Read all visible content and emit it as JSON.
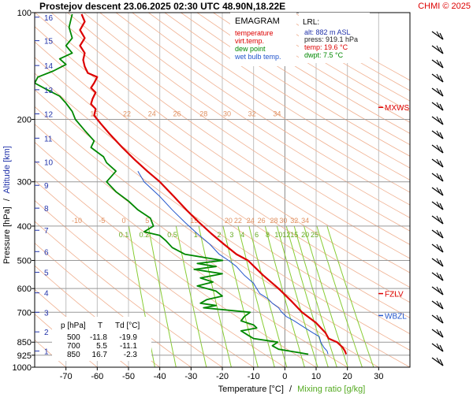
{
  "header": {
    "title": "Prostejov   descent   23.06.2025 02:30 UTC  48.90N,18.22E",
    "credit": "CHMI © 2025"
  },
  "colors": {
    "temperature": "#dd0000",
    "dew_point": "#008800",
    "wet_bulb": "#2255cc",
    "isotherm": "#c0c0c0",
    "dry_adiabat": "#f0b090",
    "mixing_ratio": "#88cc33",
    "isobar": "#999999",
    "accent": "#dd0000"
  },
  "legend": {
    "title": "EMAGRAM",
    "items": [
      {
        "label": "temperature",
        "color": "#dd0000"
      },
      {
        "label": "virt.temp.",
        "color": "#dd0000"
      },
      {
        "label": "dew point",
        "color": "#008800"
      },
      {
        "label": "wet bulb temp.",
        "color": "#2255cc"
      }
    ]
  },
  "lrl": {
    "title": "LRL:",
    "lines": [
      {
        "text": "alt: 882 m ASL",
        "color": "#2233aa"
      },
      {
        "text": "press: 919.1 hPa",
        "color": "#222222"
      },
      {
        "text": "temp: 19.6 °C",
        "color": "#dd0000"
      },
      {
        "text": "dwpt: 7.5 °C",
        "color": "#008800"
      }
    ]
  },
  "table": {
    "headers": [
      "p [hPa]",
      "T",
      "Td [°C]"
    ],
    "rows": [
      [
        "500",
        "-11.8",
        "-19.9"
      ],
      [
        "700",
        "5.5",
        "-11.1"
      ],
      [
        "850",
        "16.7",
        "-2.3"
      ]
    ]
  },
  "markers": [
    {
      "label": "MXWS",
      "pressure": 185,
      "color": "#dd0000"
    },
    {
      "label": "FZLV",
      "pressure": 620,
      "color": "#dd0000"
    },
    {
      "label": "WBZL",
      "pressure": 715,
      "color": "#2255cc"
    }
  ],
  "chart_data": {
    "type": "line",
    "xlabel": "Temperature [°C]",
    "xlabel_separator": "/",
    "xlabel2": "Mixing ratio [g/kg]",
    "ylabel": "Pressure [hPa]",
    "ylabel_separator": "/",
    "ylabel2": "Altitude [km]",
    "xlim": [
      -80,
      40
    ],
    "ylim": [
      1000,
      100
    ],
    "y_scale": "log",
    "x_ticks": [
      -70,
      -60,
      -50,
      -40,
      -30,
      -20,
      -10,
      0,
      10,
      20,
      30
    ],
    "pressure_ticks": [
      100,
      200,
      300,
      400,
      500,
      600,
      700,
      850,
      925,
      1000
    ],
    "altitude_ticks": [
      {
        "km": "1",
        "p": 900
      },
      {
        "km": "2",
        "p": 795
      },
      {
        "km": "3",
        "p": 700
      },
      {
        "km": "4",
        "p": 617
      },
      {
        "km": "5",
        "p": 540
      },
      {
        "km": "6",
        "p": 472
      },
      {
        "km": "7",
        "p": 411
      },
      {
        "km": "8",
        "p": 356
      },
      {
        "km": "9",
        "p": 307
      },
      {
        "km": "10",
        "p": 264
      },
      {
        "km": "11",
        "p": 226
      },
      {
        "km": "12",
        "p": 193
      },
      {
        "km": "13",
        "p": 165
      },
      {
        "km": "14",
        "p": 141
      },
      {
        "km": "15",
        "p": 120
      },
      {
        "km": "16",
        "p": 103
      }
    ],
    "mixing_ratio_labels": [
      {
        "text": "0.1",
        "t": -51.5
      },
      {
        "text": "0.2",
        "t": -45.0
      },
      {
        "text": "0.5",
        "t": -36.0
      },
      {
        "text": "1",
        "t": -28.5
      },
      {
        "text": "2",
        "t": -21.0
      },
      {
        "text": "3",
        "t": -17.0
      },
      {
        "text": "4",
        "t": -13.5
      },
      {
        "text": "6",
        "t": -9.0
      },
      {
        "text": "8",
        "t": -5.5
      },
      {
        "text": "10",
        "t": -2.0
      },
      {
        "text": "12",
        "t": 0.5
      },
      {
        "text": "15",
        "t": 3.0
      },
      {
        "text": "20",
        "t": 6.5
      },
      {
        "text": "25",
        "t": 9.5
      }
    ],
    "dry_adiabat_labels_200": [
      {
        "text": "15",
        "t": -61
      },
      {
        "text": "22",
        "t": -50.5
      },
      {
        "text": "24",
        "t": -42.5
      },
      {
        "text": "26",
        "t": -34.5
      },
      {
        "text": "28",
        "t": -26
      },
      {
        "text": "30",
        "t": -18.5
      },
      {
        "text": "32",
        "t": -10.5
      },
      {
        "text": "34",
        "t": -2.5
      }
    ],
    "dry_adiabat_labels_400": [
      {
        "text": "-10",
        "t": -66.5
      },
      {
        "text": "-5",
        "t": -58.5
      },
      {
        "text": "0",
        "t": -51.5
      },
      {
        "text": "5",
        "t": -44
      },
      {
        "text": "15",
        "t": -29
      },
      {
        "text": "20",
        "t": -18
      },
      {
        "text": "22",
        "t": -15
      },
      {
        "text": "24",
        "t": -11
      },
      {
        "text": "26",
        "t": -7.5
      },
      {
        "text": "28",
        "t": -3.5
      },
      {
        "text": "30",
        "t": -0.5
      },
      {
        "text": "32",
        "t": 3
      },
      {
        "text": "34",
        "t": 6.5
      }
    ],
    "series": [
      {
        "name": "temperature",
        "points": [
          [
            101,
            -65
          ],
          [
            106,
            -64
          ],
          [
            112,
            -65.5
          ],
          [
            118,
            -64
          ],
          [
            124,
            -65.5
          ],
          [
            130,
            -64
          ],
          [
            136,
            -64.5
          ],
          [
            142,
            -64
          ],
          [
            148,
            -63
          ],
          [
            152,
            -60
          ],
          [
            158,
            -61
          ],
          [
            163,
            -62
          ],
          [
            168,
            -60.5
          ],
          [
            175,
            -61.5
          ],
          [
            181,
            -62
          ],
          [
            187,
            -60.5
          ],
          [
            195,
            -61
          ],
          [
            205,
            -59
          ],
          [
            220,
            -56
          ],
          [
            240,
            -52
          ],
          [
            260,
            -48
          ],
          [
            280,
            -44
          ],
          [
            300,
            -40
          ],
          [
            330,
            -35.5
          ],
          [
            360,
            -31.5
          ],
          [
            390,
            -27.5
          ],
          [
            420,
            -23.5
          ],
          [
            450,
            -19.5
          ],
          [
            480,
            -15.5
          ],
          [
            500,
            -11.8
          ],
          [
            550,
            -7
          ],
          [
            600,
            -2
          ],
          [
            650,
            2
          ],
          [
            700,
            5.5
          ],
          [
            750,
            10
          ],
          [
            800,
            13
          ],
          [
            830,
            14
          ],
          [
            850,
            16.7
          ],
          [
            880,
            18.5
          ],
          [
            900,
            19.2
          ],
          [
            919,
            19.6
          ]
        ]
      },
      {
        "name": "dew point",
        "points": [
          [
            101,
            -68
          ],
          [
            110,
            -69
          ],
          [
            118,
            -68
          ],
          [
            124,
            -70
          ],
          [
            130,
            -68
          ],
          [
            135,
            -72
          ],
          [
            140,
            -70
          ],
          [
            146,
            -74
          ],
          [
            152,
            -79
          ],
          [
            158,
            -80
          ],
          [
            165,
            -76
          ],
          [
            172,
            -72
          ],
          [
            180,
            -70
          ],
          [
            190,
            -68
          ],
          [
            200,
            -67
          ],
          [
            215,
            -64
          ],
          [
            230,
            -61
          ],
          [
            240,
            -62
          ],
          [
            255,
            -58
          ],
          [
            265,
            -57
          ],
          [
            280,
            -54
          ],
          [
            300,
            -57
          ],
          [
            320,
            -54
          ],
          [
            340,
            -50
          ],
          [
            360,
            -47
          ],
          [
            380,
            -43
          ],
          [
            400,
            -42
          ],
          [
            415,
            -45
          ],
          [
            425,
            -40
          ],
          [
            440,
            -38
          ],
          [
            460,
            -36
          ],
          [
            480,
            -32
          ],
          [
            490,
            -26
          ],
          [
            500,
            -19.9
          ],
          [
            510,
            -28
          ],
          [
            520,
            -22
          ],
          [
            530,
            -29
          ],
          [
            545,
            -20
          ],
          [
            560,
            -27
          ],
          [
            575,
            -23
          ],
          [
            590,
            -28
          ],
          [
            610,
            -22
          ],
          [
            630,
            -20
          ],
          [
            645,
            -25
          ],
          [
            660,
            -27
          ],
          [
            670,
            -22
          ],
          [
            680,
            -26
          ],
          [
            700,
            -11.1
          ],
          [
            720,
            -13
          ],
          [
            740,
            -14
          ],
          [
            760,
            -10
          ],
          [
            775,
            -9
          ],
          [
            790,
            -14
          ],
          [
            810,
            -12
          ],
          [
            830,
            -10
          ],
          [
            850,
            -2.3
          ],
          [
            870,
            -4
          ],
          [
            890,
            -2
          ],
          [
            905,
            3
          ],
          [
            919,
            7.5
          ]
        ]
      },
      {
        "name": "wet bulb temp.",
        "points": [
          [
            280,
            -47
          ],
          [
            300,
            -45
          ],
          [
            330,
            -40
          ],
          [
            360,
            -36
          ],
          [
            390,
            -32
          ],
          [
            420,
            -28
          ],
          [
            450,
            -24
          ],
          [
            480,
            -21
          ],
          [
            500,
            -18
          ],
          [
            520,
            -15.5
          ],
          [
            550,
            -13
          ],
          [
            580,
            -10
          ],
          [
            600,
            -9
          ],
          [
            620,
            -8
          ],
          [
            640,
            -5.5
          ],
          [
            660,
            -4
          ],
          [
            680,
            -2
          ],
          [
            700,
            -1
          ],
          [
            720,
            0.5
          ],
          [
            740,
            3
          ],
          [
            760,
            5
          ],
          [
            780,
            7
          ],
          [
            800,
            9
          ],
          [
            820,
            11
          ],
          [
            850,
            11.5
          ],
          [
            880,
            12.5
          ],
          [
            900,
            13.5
          ],
          [
            919,
            13.8
          ]
        ]
      }
    ]
  }
}
